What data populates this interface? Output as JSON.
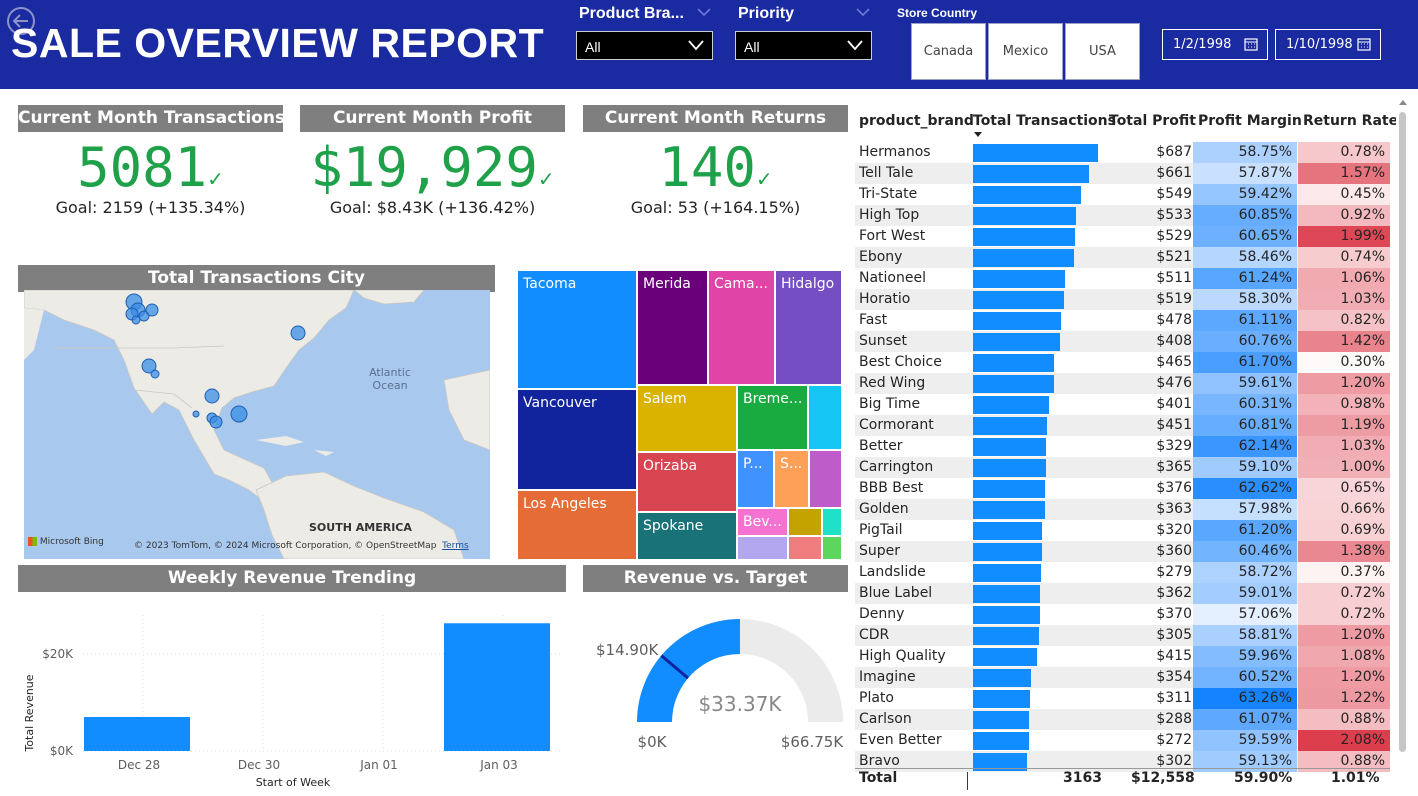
{
  "header": {
    "title": "SALE OVERVIEW REPORT",
    "slicers": [
      {
        "title": "Product Bra...",
        "value": "All"
      },
      {
        "title": "Priority",
        "value": "All"
      }
    ],
    "store_country": {
      "title": "Store Country",
      "options": [
        "Canada",
        "Mexico",
        "USA"
      ]
    },
    "date_start": "1/2/1998",
    "date_end": "1/10/1998"
  },
  "kpis": [
    {
      "title": "Current Month Transactions",
      "value": "5081",
      "goal": "Goal: 2159 (+135.34%)"
    },
    {
      "title": "Current Month Profit",
      "value": "$19,929",
      "goal": "Goal: $8.43K (+136.42%)"
    },
    {
      "title": "Current Month Returns",
      "value": "140",
      "goal": "Goal: 53 (+164.15%)"
    }
  ],
  "map": {
    "title": "Total Transactions City",
    "labels": {
      "ocean": "Atlantic Ocean",
      "continent": "SOUTH AMERICA"
    },
    "attribution": "© 2023 TomTom, © 2024 Microsoft Corporation, © OpenStreetMap",
    "terms": "Terms",
    "logo": "Microsoft Bing"
  },
  "treemap": {
    "labels": [
      "Tacoma",
      "Merida",
      "Cama...",
      "Hidalgo",
      "Vancouver",
      "Salem",
      "Breme...",
      "Orizaba",
      "P...",
      "S...",
      "Los Angeles",
      "Spokane",
      "Bev..."
    ]
  },
  "colors": {
    "header_bg": "#1a2aa0",
    "kpi_green": "#1fa14a",
    "card_header": "#807f7f",
    "bar_blue": "#118dff"
  },
  "chart_data": [
    {
      "type": "bar",
      "title": "Weekly Revenue Trending",
      "xlabel": "Start of Week",
      "ylabel": "Total Revenue",
      "categories": [
        "Dec 28",
        "Dec 30",
        "Jan 01",
        "Jan 03"
      ],
      "bars": [
        {
          "x": "Dec 28",
          "value": 7000
        },
        {
          "x": "Jan 03",
          "value": 26300
        }
      ],
      "yticks": [
        "$0K",
        "$20K"
      ],
      "ylim": [
        0,
        28000
      ]
    },
    {
      "type": "gauge",
      "title": "Revenue vs. Target",
      "value": 33370,
      "value_label": "$33.37K",
      "min": 0,
      "min_label": "$0K",
      "max": 66750,
      "max_label": "$66.75K",
      "target": 14900,
      "target_label": "$14.90K"
    }
  ],
  "table": {
    "columns": [
      "product_brand",
      "Total Transactions",
      "Total Profit",
      "Profit Margin",
      "Return Rate"
    ],
    "max_transactions": 125,
    "rows": [
      {
        "brand": "Hermanos",
        "tx": 125,
        "profit": "$687",
        "margin": "58.75%",
        "ret": "0.78%"
      },
      {
        "brand": "Tell Tale",
        "tx": 116,
        "profit": "$661",
        "margin": "57.87%",
        "ret": "1.57%"
      },
      {
        "brand": "Tri-State",
        "tx": 108,
        "profit": "$549",
        "margin": "59.42%",
        "ret": "0.45%"
      },
      {
        "brand": "High Top",
        "tx": 103,
        "profit": "$533",
        "margin": "60.85%",
        "ret": "0.92%"
      },
      {
        "brand": "Fort West",
        "tx": 102,
        "profit": "$529",
        "margin": "60.65%",
        "ret": "1.99%"
      },
      {
        "brand": "Ebony",
        "tx": 101,
        "profit": "$521",
        "margin": "58.46%",
        "ret": "0.74%"
      },
      {
        "brand": "Nationeel",
        "tx": 92,
        "profit": "$511",
        "margin": "61.24%",
        "ret": "1.06%"
      },
      {
        "brand": "Horatio",
        "tx": 91,
        "profit": "$519",
        "margin": "58.30%",
        "ret": "1.03%"
      },
      {
        "brand": "Fast",
        "tx": 88,
        "profit": "$478",
        "margin": "61.11%",
        "ret": "0.82%"
      },
      {
        "brand": "Sunset",
        "tx": 87,
        "profit": "$408",
        "margin": "60.76%",
        "ret": "1.42%"
      },
      {
        "brand": "Best Choice",
        "tx": 81,
        "profit": "$465",
        "margin": "61.70%",
        "ret": "0.30%"
      },
      {
        "brand": "Red Wing",
        "tx": 81,
        "profit": "$476",
        "margin": "59.61%",
        "ret": "1.20%"
      },
      {
        "brand": "Big Time",
        "tx": 76,
        "profit": "$401",
        "margin": "60.31%",
        "ret": "0.98%"
      },
      {
        "brand": "Cormorant",
        "tx": 74,
        "profit": "$451",
        "margin": "60.81%",
        "ret": "1.19%"
      },
      {
        "brand": "Better",
        "tx": 73,
        "profit": "$329",
        "margin": "62.14%",
        "ret": "1.03%"
      },
      {
        "brand": "Carrington",
        "tx": 73,
        "profit": "$365",
        "margin": "59.10%",
        "ret": "1.00%"
      },
      {
        "brand": "BBB Best",
        "tx": 72,
        "profit": "$376",
        "margin": "62.62%",
        "ret": "0.65%"
      },
      {
        "brand": "Golden",
        "tx": 72,
        "profit": "$363",
        "margin": "57.98%",
        "ret": "0.66%"
      },
      {
        "brand": "PigTail",
        "tx": 69,
        "profit": "$320",
        "margin": "61.20%",
        "ret": "0.69%"
      },
      {
        "brand": "Super",
        "tx": 69,
        "profit": "$360",
        "margin": "60.46%",
        "ret": "1.38%"
      },
      {
        "brand": "Landslide",
        "tx": 68,
        "profit": "$279",
        "margin": "58.72%",
        "ret": "0.37%"
      },
      {
        "brand": "Blue Label",
        "tx": 67,
        "profit": "$362",
        "margin": "59.01%",
        "ret": "0.72%"
      },
      {
        "brand": "Denny",
        "tx": 67,
        "profit": "$370",
        "margin": "57.06%",
        "ret": "0.72%"
      },
      {
        "brand": "CDR",
        "tx": 66,
        "profit": "$305",
        "margin": "58.81%",
        "ret": "1.20%"
      },
      {
        "brand": "High Quality",
        "tx": 64,
        "profit": "$415",
        "margin": "59.96%",
        "ret": "1.08%"
      },
      {
        "brand": "Imagine",
        "tx": 58,
        "profit": "$354",
        "margin": "60.52%",
        "ret": "1.20%"
      },
      {
        "brand": "Plato",
        "tx": 57,
        "profit": "$311",
        "margin": "63.26%",
        "ret": "1.22%"
      },
      {
        "brand": "Carlson",
        "tx": 56,
        "profit": "$288",
        "margin": "61.07%",
        "ret": "0.88%"
      },
      {
        "brand": "Even Better",
        "tx": 56,
        "profit": "$272",
        "margin": "59.59%",
        "ret": "2.08%"
      },
      {
        "brand": "Bravo",
        "tx": 54,
        "profit": "$302",
        "margin": "59.13%",
        "ret": "0.88%"
      }
    ],
    "total": {
      "label": "Total",
      "tx": "3163",
      "profit": "$12,558",
      "margin": "59.90%",
      "ret": "1.01%"
    }
  }
}
